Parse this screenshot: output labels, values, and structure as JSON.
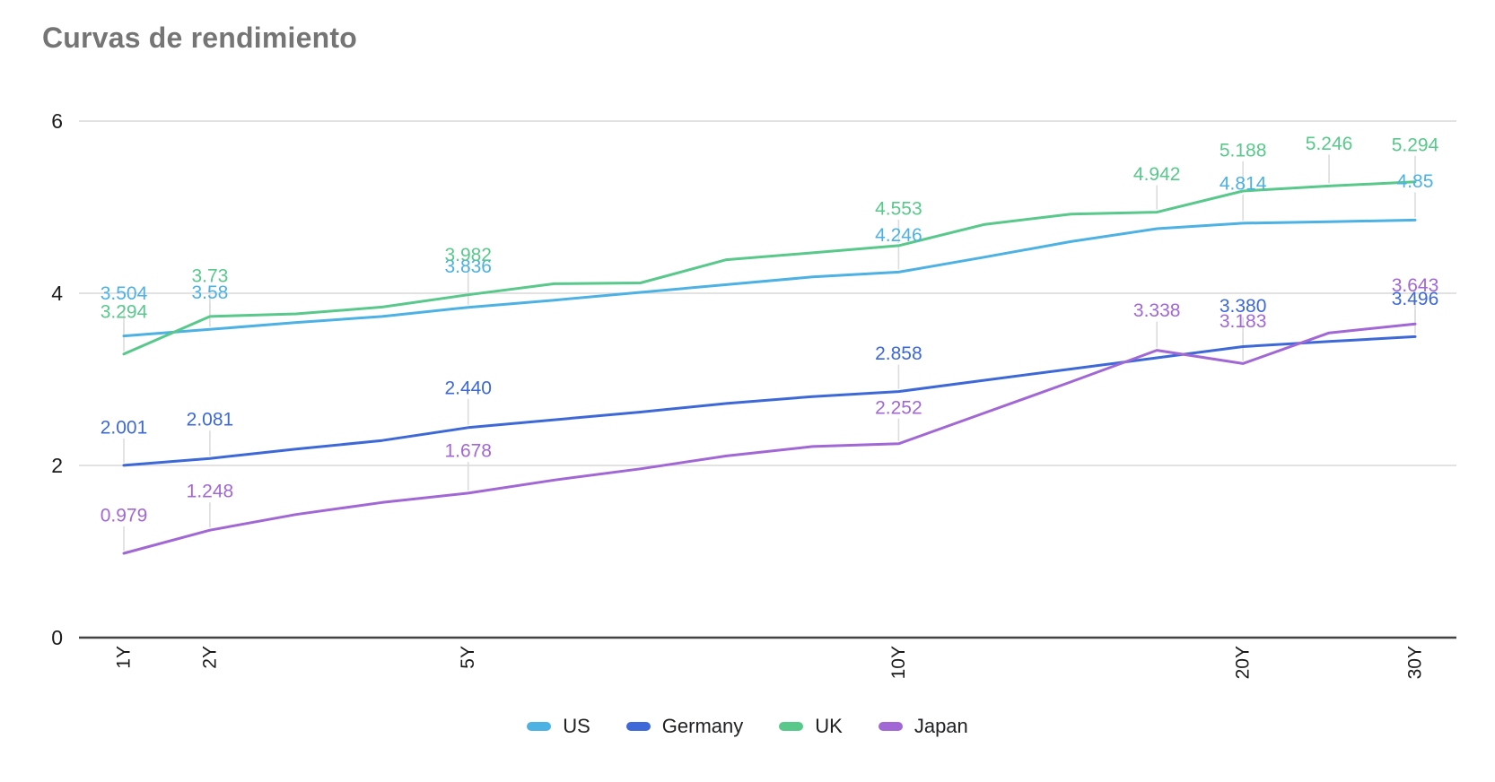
{
  "chart_data": {
    "type": "line",
    "title": "Curvas de rendimiento",
    "legend_position": "bottom",
    "grid": true,
    "x_point_count": 16,
    "x_tick_labels": [
      {
        "index": 0,
        "label": "1Y"
      },
      {
        "index": 1,
        "label": "2Y"
      },
      {
        "index": 4,
        "label": "5Y"
      },
      {
        "index": 9,
        "label": "10Y"
      },
      {
        "index": 13,
        "label": "20Y"
      },
      {
        "index": 15,
        "label": "30Y"
      }
    ],
    "y_ticks": [
      {
        "value": 0,
        "label": "0"
      },
      {
        "value": 2,
        "label": "2"
      },
      {
        "value": 4,
        "label": "4"
      },
      {
        "value": 6,
        "label": "6"
      }
    ],
    "ylim": [
      0,
      6
    ],
    "series": [
      {
        "name": "US",
        "color": "#4cb1e3",
        "values": [
          3.504,
          3.58,
          3.66,
          3.73,
          3.836,
          3.92,
          4.01,
          4.1,
          4.19,
          4.246,
          4.42,
          4.6,
          4.75,
          4.814,
          4.83,
          4.85
        ],
        "point_labels": [
          {
            "index": 0,
            "text": "3.504",
            "dy": 47
          },
          {
            "index": 1,
            "text": "3.58",
            "dy": 41
          },
          {
            "index": 4,
            "text": "3.836",
            "dy": 45
          },
          {
            "index": 9,
            "text": "4.246",
            "dy": 41
          },
          {
            "index": 13,
            "text": "4.814",
            "dy": 44
          },
          {
            "index": 15,
            "text": "4.85",
            "dy": 43
          }
        ]
      },
      {
        "name": "Germany",
        "color": "#3d68d8",
        "values": [
          2.001,
          2.081,
          2.19,
          2.29,
          2.44,
          2.53,
          2.62,
          2.72,
          2.8,
          2.858,
          2.99,
          3.12,
          3.25,
          3.38,
          3.44,
          3.496
        ],
        "point_labels": [
          {
            "index": 0,
            "text": "2.001",
            "dy": 42
          },
          {
            "index": 1,
            "text": "2.081",
            "dy": 43
          },
          {
            "index": 4,
            "text": "2.440",
            "dy": 44
          },
          {
            "index": 9,
            "text": "2.858",
            "dy": 42
          },
          {
            "index": 13,
            "text": "3.380",
            "dy": 45
          },
          {
            "index": 15,
            "text": "3.496",
            "dy": 42
          }
        ]
      },
      {
        "name": "UK",
        "color": "#58c88b",
        "values": [
          3.294,
          3.73,
          3.76,
          3.84,
          3.982,
          4.11,
          4.12,
          4.39,
          4.47,
          4.553,
          4.8,
          4.92,
          4.942,
          5.188,
          5.246,
          5.294
        ],
        "point_labels": [
          {
            "index": 0,
            "text": "3.294",
            "dy": 47
          },
          {
            "index": 1,
            "text": "3.73",
            "dy": 45
          },
          {
            "index": 4,
            "text": "3.982",
            "dy": 44
          },
          {
            "index": 9,
            "text": "4.553",
            "dy": 41
          },
          {
            "index": 12,
            "text": "4.942",
            "dy": 42
          },
          {
            "index": 13,
            "text": "5.188",
            "dy": 45
          },
          {
            "index": 14,
            "text": "5.246",
            "dy": 47
          },
          {
            "index": 15,
            "text": "5.294",
            "dy": 41
          }
        ]
      },
      {
        "name": "Japan",
        "color": "#a168d5",
        "values": [
          0.979,
          1.248,
          1.43,
          1.57,
          1.678,
          1.83,
          1.96,
          2.11,
          2.22,
          2.252,
          2.61,
          2.97,
          3.338,
          3.183,
          3.54,
          3.643
        ],
        "point_labels": [
          {
            "index": 0,
            "text": "0.979",
            "dy": 42
          },
          {
            "index": 1,
            "text": "1.248",
            "dy": 43
          },
          {
            "index": 4,
            "text": "1.678",
            "dy": 47
          },
          {
            "index": 9,
            "text": "2.252",
            "dy": 40
          },
          {
            "index": 12,
            "text": "3.338",
            "dy": 44
          },
          {
            "index": 13,
            "text": "3.183",
            "dy": 47
          },
          {
            "index": 15,
            "text": "3.643",
            "dy": 43
          }
        ]
      }
    ],
    "style": {
      "title_color": "#757575",
      "grid_color": "#d9d9d9",
      "axis_color": "#424242",
      "callout_stem_color": "#dcdcdc",
      "tick_label_color": "#1a1a1a"
    }
  }
}
